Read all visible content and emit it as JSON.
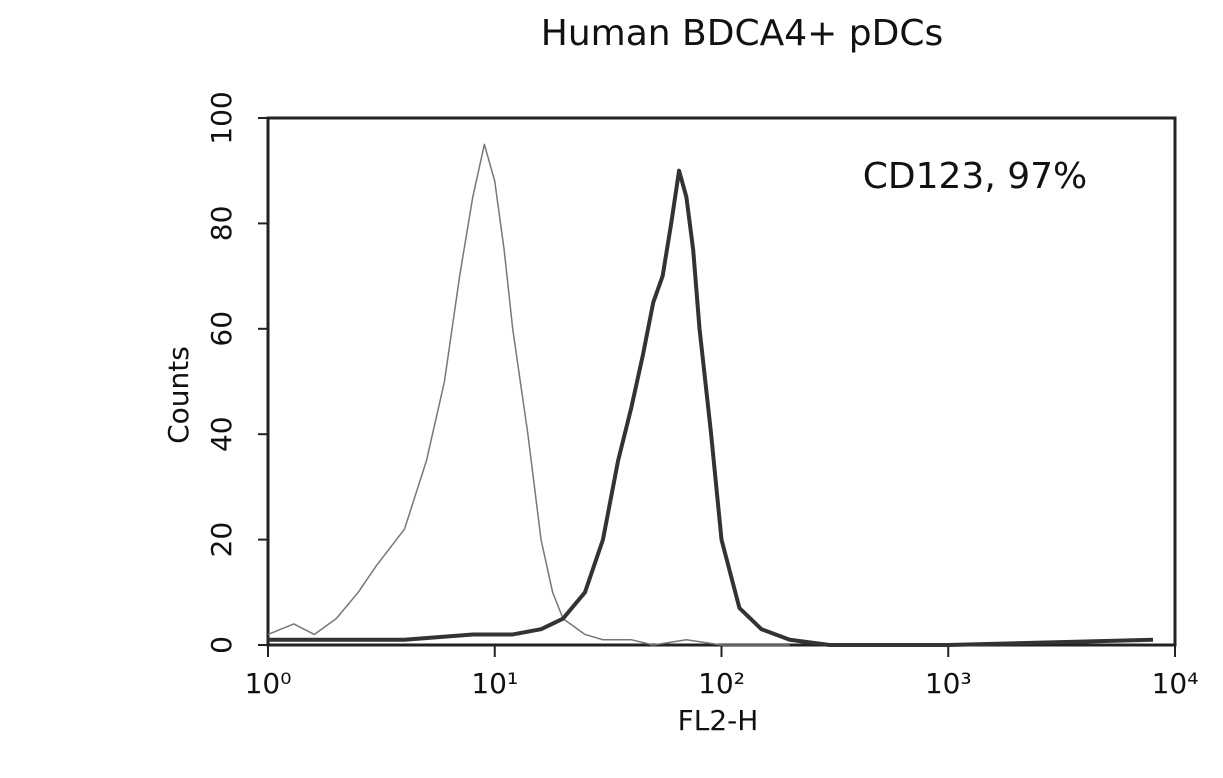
{
  "chart_data": {
    "type": "line",
    "title": "Human BDCA4+ pDCs",
    "x_label": "FL2-H",
    "y_label": "Counts",
    "annotation": "CD123, 97%",
    "xscale": "log",
    "xlim": [
      1,
      10000
    ],
    "xticks": [
      {
        "value": 1,
        "label": "10⁰"
      },
      {
        "value": 10,
        "label": "10¹"
      },
      {
        "value": 100,
        "label": "10²"
      },
      {
        "value": 1000,
        "label": "10³"
      },
      {
        "value": 10000,
        "label": "10⁴"
      }
    ],
    "ylim": [
      0,
      100
    ],
    "yticks": [
      0,
      20,
      40,
      60,
      80,
      100
    ],
    "series": [
      {
        "color": "#777777",
        "width": 1.5,
        "x": [
          1,
          1.3,
          1.6,
          2,
          2.5,
          3,
          4,
          5,
          6,
          7,
          8,
          9,
          10,
          11,
          12,
          14,
          16,
          18,
          20,
          25,
          30,
          40,
          50,
          70,
          100,
          200
        ],
        "values": [
          2,
          4,
          2,
          5,
          10,
          15,
          22,
          35,
          50,
          70,
          85,
          95,
          88,
          75,
          60,
          40,
          20,
          10,
          5,
          2,
          1,
          1,
          0,
          1,
          0,
          0
        ]
      },
      {
        "color": "#333333",
        "width": 4,
        "x": [
          1,
          2,
          4,
          8,
          12,
          16,
          20,
          25,
          30,
          35,
          40,
          45,
          50,
          55,
          60,
          65,
          70,
          75,
          80,
          90,
          100,
          120,
          150,
          200,
          300,
          1000,
          8000
        ],
        "values": [
          1,
          1,
          1,
          2,
          2,
          3,
          5,
          10,
          20,
          35,
          45,
          55,
          65,
          70,
          80,
          90,
          85,
          75,
          60,
          40,
          20,
          7,
          3,
          1,
          0,
          0,
          1
        ]
      }
    ]
  }
}
